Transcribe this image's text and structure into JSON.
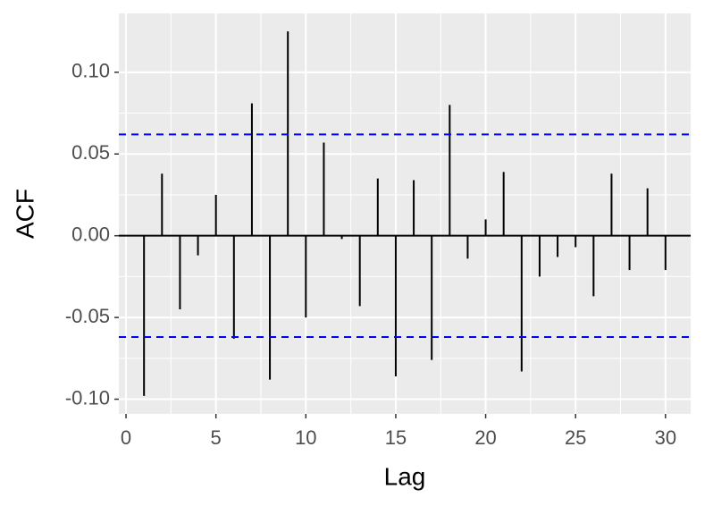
{
  "chart_data": {
    "type": "acf",
    "x_label": "Lag",
    "y_label": "ACF",
    "x": [
      1,
      2,
      3,
      4,
      5,
      6,
      7,
      8,
      9,
      10,
      11,
      12,
      13,
      14,
      15,
      16,
      17,
      18,
      19,
      20,
      21,
      22,
      23,
      24,
      25,
      26,
      27,
      28,
      29,
      30
    ],
    "values": [
      -0.098,
      0.038,
      -0.045,
      -0.012,
      0.025,
      -0.063,
      0.081,
      -0.088,
      0.125,
      -0.05,
      0.057,
      -0.002,
      -0.043,
      0.035,
      -0.086,
      0.034,
      -0.076,
      0.08,
      -0.014,
      0.01,
      0.039,
      -0.083,
      -0.025,
      -0.013,
      -0.007,
      -0.037,
      0.038,
      -0.021,
      0.029,
      -0.021
    ],
    "color": "#000000",
    "conf_limit": 0.062,
    "conf_color": "#0000ff",
    "xlim": [
      -0.4,
      31.4
    ],
    "xticks": [
      0,
      5,
      10,
      15,
      20,
      25,
      30
    ],
    "ylim": [
      -0.109,
      0.136
    ],
    "yticks": [
      {
        "value": -0.1,
        "label": "-0.10"
      },
      -0.05,
      {
        "value": 0,
        "label": "0.00"
      },
      0.05,
      {
        "value": 0.1,
        "label": "0.10"
      }
    ],
    "grid": true,
    "panel_color": "#ebebeb"
  }
}
